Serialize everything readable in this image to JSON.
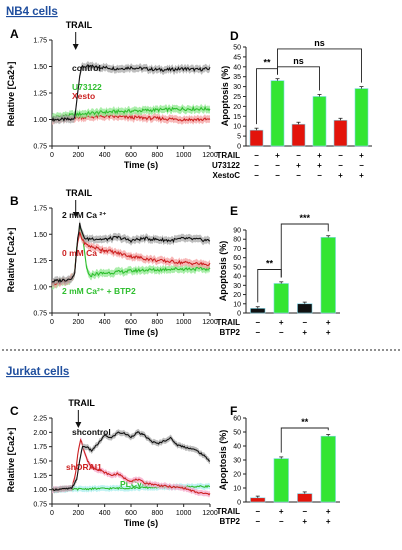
{
  "section_headers": {
    "nb4": "NB4 cells",
    "jurkat": "Jurkat cells"
  },
  "colors": {
    "header_blue": "#1f4e9e",
    "black_series": "#111111",
    "green_series": "#2fbf2f",
    "red_series": "#cc2222",
    "bar_red": "#e3140b",
    "bar_green": "#33e533",
    "bar_black": "#111111",
    "shade_grey": "#a8a8a8",
    "shade_green": "#8ee88e",
    "shade_red": "#f4a0a0",
    "shade_pink": "#f6a6c8",
    "shade_cyan": "#a8eeee"
  },
  "chart_data": [
    {
      "id": "A",
      "type": "line",
      "panel_label": "A",
      "xlabel": "Time (s)",
      "ylabel": "Relative [Ca2+]",
      "xlim": [
        0,
        1200
      ],
      "ylim": [
        0.75,
        1.75
      ],
      "xticks": [
        "0",
        "200",
        "400",
        "600",
        "800",
        "1000",
        "1200"
      ],
      "yticks": [
        "0.75",
        "1.00",
        "1.25",
        "1.50",
        "1.75"
      ],
      "annotation": "TRAIL",
      "annotation_x": 180,
      "series": [
        {
          "name": "control",
          "color": "#111111",
          "x": [
            0,
            100,
            170,
            190,
            210,
            230,
            260,
            300,
            400,
            500,
            600,
            700,
            800,
            900,
            1000,
            1100,
            1200
          ],
          "y": [
            1.0,
            1.0,
            1.0,
            1.2,
            1.42,
            1.5,
            1.5,
            1.5,
            1.49,
            1.48,
            1.49,
            1.48,
            1.47,
            1.47,
            1.48,
            1.47,
            1.48
          ]
        },
        {
          "name": "U73122",
          "color": "#2fbf2f",
          "x": [
            0,
            200,
            400,
            600,
            800,
            1000,
            1200
          ],
          "y": [
            1.02,
            1.05,
            1.07,
            1.08,
            1.09,
            1.1,
            1.1
          ]
        },
        {
          "name": "Xesto",
          "color": "#cc2222",
          "x": [
            0,
            200,
            400,
            600,
            800,
            1000,
            1200
          ],
          "y": [
            1.0,
            1.02,
            1.03,
            1.02,
            1.01,
            1.0,
            1.0
          ]
        }
      ]
    },
    {
      "id": "B",
      "type": "line",
      "panel_label": "B",
      "xlabel": "Time (s)",
      "ylabel": "Relative [Ca2+]",
      "xlim": [
        0,
        1200
      ],
      "ylim": [
        0.75,
        1.75
      ],
      "xticks": [
        "0",
        "200",
        "400",
        "600",
        "800",
        "1000",
        "1200"
      ],
      "yticks": [
        "0.75",
        "1.00",
        "1.25",
        "1.50",
        "1.75"
      ],
      "annotation": "TRAIL",
      "annotation_x": 180,
      "series": [
        {
          "name": "2 mM Ca ²⁺",
          "color": "#111111",
          "x": [
            0,
            120,
            170,
            190,
            210,
            230,
            260,
            300,
            400,
            500,
            600,
            700,
            800,
            900,
            1000,
            1100,
            1200
          ],
          "y": [
            1.05,
            1.07,
            1.1,
            1.4,
            1.6,
            1.5,
            1.45,
            1.46,
            1.45,
            1.47,
            1.44,
            1.46,
            1.45,
            1.44,
            1.46,
            1.45,
            1.44
          ]
        },
        {
          "name": "0 mM Ca ²⁺",
          "color": "#cc2222",
          "x": [
            0,
            120,
            170,
            190,
            210,
            230,
            260,
            300,
            400,
            500,
            600,
            700,
            800,
            900,
            1000,
            1100,
            1200
          ],
          "y": [
            1.03,
            1.06,
            1.1,
            1.38,
            1.52,
            1.45,
            1.4,
            1.38,
            1.35,
            1.32,
            1.29,
            1.27,
            1.25,
            1.24,
            1.23,
            1.22,
            1.21
          ]
        },
        {
          "name": "2 mM Ca²⁺ + BTP2",
          "color": "#2fbf2f",
          "x": [
            0,
            120,
            170,
            190,
            210,
            230,
            260,
            280,
            320,
            400,
            500,
            600,
            700,
            800,
            900,
            1000,
            1100,
            1200
          ],
          "y": [
            1.02,
            1.05,
            1.1,
            1.4,
            1.55,
            1.5,
            1.2,
            1.1,
            1.12,
            1.13,
            1.14,
            1.15,
            1.16,
            1.16,
            1.17,
            1.17,
            1.17,
            1.17
          ]
        }
      ]
    },
    {
      "id": "C",
      "type": "line",
      "panel_label": "C",
      "xlabel": "Time (s)",
      "ylabel": "Relative [Ca2+]",
      "xlim": [
        0,
        1200
      ],
      "ylim": [
        0.75,
        2.25
      ],
      "xticks": [
        "0",
        "200",
        "400",
        "600",
        "800",
        "1000",
        "1200"
      ],
      "yticks": [
        "0.75",
        "1.00",
        "1.25",
        "1.50",
        "1.75",
        "2.00",
        "2.25"
      ],
      "annotation": "TRAIL",
      "annotation_x": 200,
      "series": [
        {
          "name": "shcontrol",
          "color": "#111111",
          "x": [
            0,
            150,
            190,
            210,
            230,
            260,
            300,
            350,
            400,
            450,
            500,
            550,
            600,
            650,
            700,
            750,
            800,
            850,
            900,
            950,
            1000,
            1050,
            1100,
            1150,
            1200
          ],
          "y": [
            1.0,
            1.02,
            1.2,
            1.5,
            1.75,
            1.75,
            1.68,
            1.8,
            1.95,
            1.9,
            2.0,
            1.98,
            1.92,
            2.0,
            1.95,
            1.85,
            1.8,
            1.85,
            1.9,
            1.78,
            1.75,
            1.72,
            1.68,
            1.6,
            1.5
          ]
        },
        {
          "name": "shORAI1",
          "color": "#cc2222",
          "x": [
            0,
            150,
            180,
            200,
            220,
            240,
            270,
            300,
            350,
            400,
            450,
            500,
            550,
            600,
            650,
            700,
            800,
            900,
            1000,
            1100,
            1200
          ],
          "y": [
            1.0,
            1.02,
            1.3,
            1.7,
            1.9,
            1.7,
            1.5,
            1.4,
            1.35,
            1.3,
            1.25,
            1.28,
            1.2,
            1.15,
            1.18,
            1.12,
            1.08,
            1.05,
            1.03,
            0.95,
            0.92
          ]
        },
        {
          "name": "PLCγ-/-",
          "color": "#2fbf2f",
          "x": [
            0,
            200,
            400,
            600,
            800,
            1000,
            1200
          ],
          "y": [
            1.0,
            1.01,
            1.02,
            1.03,
            1.04,
            1.05,
            1.06
          ]
        }
      ]
    },
    {
      "id": "D",
      "type": "bar",
      "panel_label": "D",
      "ylabel": "Apoptosis (%)",
      "ylim": [
        0,
        50
      ],
      "yticks": [
        "0",
        "5",
        "10",
        "15",
        "20",
        "25",
        "30",
        "35",
        "40",
        "45",
        "50"
      ],
      "values": [
        8,
        33,
        11,
        25,
        13,
        29
      ],
      "bar_colors": [
        "#e3140b",
        "#33e533",
        "#e3140b",
        "#33e533",
        "#e3140b",
        "#33e533"
      ],
      "rows": [
        {
          "name": "TRAIL",
          "marks": [
            "−",
            "+",
            "−",
            "+",
            "−",
            "+"
          ]
        },
        {
          "name": "U73122",
          "marks": [
            "−",
            "−",
            "+",
            "+",
            "−",
            "−"
          ]
        },
        {
          "name": "XestoC",
          "marks": [
            "−",
            "−",
            "−",
            "−",
            "+",
            "+"
          ]
        }
      ],
      "significance": [
        {
          "label": "**",
          "from": 0,
          "to": 1
        },
        {
          "label": "ns",
          "from": 1,
          "to": 3
        },
        {
          "label": "ns",
          "from": 1,
          "to": 5
        }
      ]
    },
    {
      "id": "E",
      "type": "bar",
      "panel_label": "E",
      "ylabel": "Apoptosis (%)",
      "ylim": [
        0,
        90
      ],
      "yticks": [
        "0",
        "10",
        "20",
        "30",
        "40",
        "50",
        "60",
        "70",
        "80",
        "90"
      ],
      "values": [
        5,
        32,
        10,
        82
      ],
      "bar_colors": [
        "#111111",
        "#33e533",
        "#111111",
        "#33e533"
      ],
      "rows": [
        {
          "name": "TRAIL",
          "marks": [
            "−",
            "+",
            "−",
            "+"
          ]
        },
        {
          "name": "BTP2",
          "marks": [
            "−",
            "−",
            "+",
            "+"
          ]
        }
      ],
      "significance": [
        {
          "label": "**",
          "from": 0,
          "to": 1
        },
        {
          "label": "***",
          "from": 1,
          "to": 3
        }
      ]
    },
    {
      "id": "F",
      "type": "bar",
      "panel_label": "F",
      "ylabel": "Apoptosis (%)",
      "ylim": [
        0,
        60
      ],
      "yticks": [
        "0",
        "10",
        "20",
        "30",
        "40",
        "50",
        "60"
      ],
      "values": [
        3,
        31,
        6,
        47
      ],
      "bar_colors": [
        "#e3140b",
        "#33e533",
        "#e3140b",
        "#33e533"
      ],
      "rows": [
        {
          "name": "TRAIL",
          "marks": [
            "−",
            "+",
            "−",
            "+"
          ]
        },
        {
          "name": "BTP2",
          "marks": [
            "−",
            "−",
            "+",
            "+"
          ]
        }
      ],
      "significance": [
        {
          "label": "**",
          "from": 1,
          "to": 3
        }
      ]
    }
  ]
}
